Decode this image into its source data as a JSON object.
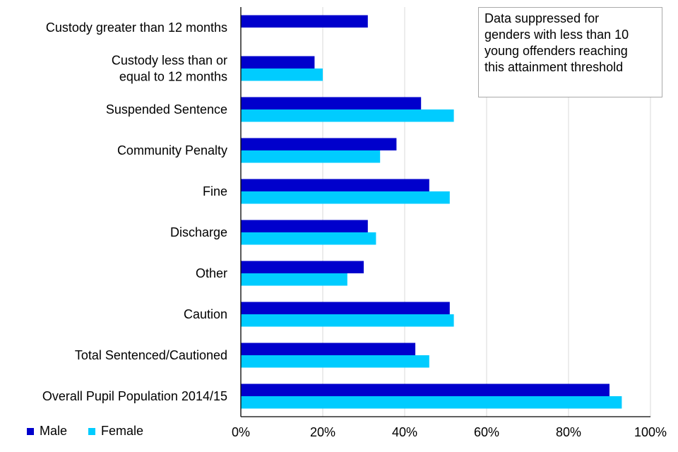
{
  "chart_data": {
    "type": "bar",
    "orientation": "horizontal",
    "categories": [
      "Custody greater than 12 months",
      "Custody less than or equal to 12 months",
      "Suspended Sentence",
      "Community Penalty",
      "Fine",
      "Discharge",
      "Other",
      "Caution",
      "Total Sentenced/Cautioned",
      "Overall Pupil Population 2014/15"
    ],
    "category_lines": [
      [
        "Custody greater than 12 months"
      ],
      [
        "Custody less than or",
        "equal to 12 months"
      ],
      [
        "Suspended Sentence"
      ],
      [
        "Community Penalty"
      ],
      [
        "Fine"
      ],
      [
        "Discharge"
      ],
      [
        "Other"
      ],
      [
        "Caution"
      ],
      [
        "Total Sentenced/Cautioned"
      ],
      [
        "Overall Pupil Population 2014/15"
      ]
    ],
    "series": [
      {
        "name": "Male",
        "color": "#0000CC",
        "values": [
          31,
          18,
          44,
          38,
          46,
          31,
          30,
          51,
          42.6,
          90
        ]
      },
      {
        "name": "Female",
        "color": "#00CCFF",
        "values": [
          null,
          20,
          52,
          34,
          51,
          33,
          26,
          52,
          46,
          93
        ]
      }
    ],
    "xlim": [
      0,
      100
    ],
    "x_ticks": [
      "0%",
      "20%",
      "40%",
      "60%",
      "80%",
      "100%"
    ],
    "grid": "vertical",
    "legend": "bottom-left",
    "annotation": [
      "Data suppressed for",
      "genders with less than 10",
      "young offenders reaching",
      "this attainment threshold"
    ]
  }
}
